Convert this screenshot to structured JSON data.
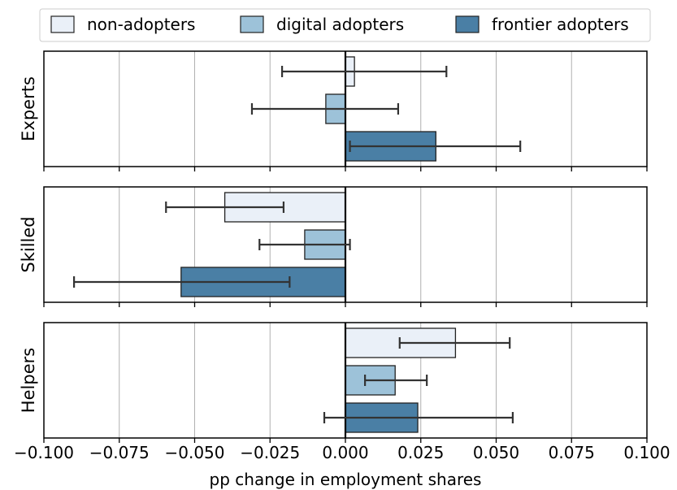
{
  "chart_data": {
    "type": "bar",
    "orientation": "horizontal",
    "xlabel": "pp change in employment shares",
    "xlim": [
      -0.1,
      0.1
    ],
    "xticks": [
      "−0.100",
      "−0.075",
      "−0.050",
      "−0.025",
      "0.000",
      "0.025",
      "0.050",
      "0.075",
      "0.100"
    ],
    "xtick_values": [
      -0.1,
      -0.075,
      -0.05,
      -0.025,
      0,
      0.025,
      0.05,
      0.075,
      0.1
    ],
    "grid": "vertical",
    "legend_position": "top",
    "series_colors": [
      "#eaf0f8",
      "#9dc2d9",
      "#4a7fa5"
    ],
    "legend": [
      {
        "name": "non-adopters"
      },
      {
        "name": "digital adopters"
      },
      {
        "name": "frontier adopters"
      }
    ],
    "panels": [
      {
        "label": "Experts",
        "bars": [
          {
            "series": "non-adopters",
            "value": 0.003,
            "ci": [
              -0.021,
              0.0335
            ]
          },
          {
            "series": "digital adopters",
            "value": -0.0065,
            "ci": [
              -0.031,
              0.0175
            ]
          },
          {
            "series": "frontier adopters",
            "value": 0.03,
            "ci": [
              0.0015,
              0.058
            ]
          }
        ]
      },
      {
        "label": "Skilled",
        "bars": [
          {
            "series": "non-adopters",
            "value": -0.04,
            "ci": [
              -0.0595,
              -0.0205
            ]
          },
          {
            "series": "digital adopters",
            "value": -0.0135,
            "ci": [
              -0.0285,
              0.0015
            ]
          },
          {
            "series": "frontier adopters",
            "value": -0.0545,
            "ci": [
              -0.09,
              -0.0185
            ]
          }
        ]
      },
      {
        "label": "Helpers",
        "bars": [
          {
            "series": "non-adopters",
            "value": 0.0365,
            "ci": [
              0.018,
              0.0545
            ]
          },
          {
            "series": "digital adopters",
            "value": 0.0165,
            "ci": [
              0.0065,
              0.027
            ]
          },
          {
            "series": "frontier adopters",
            "value": 0.024,
            "ci": [
              -0.007,
              0.0555
            ]
          }
        ]
      }
    ]
  }
}
